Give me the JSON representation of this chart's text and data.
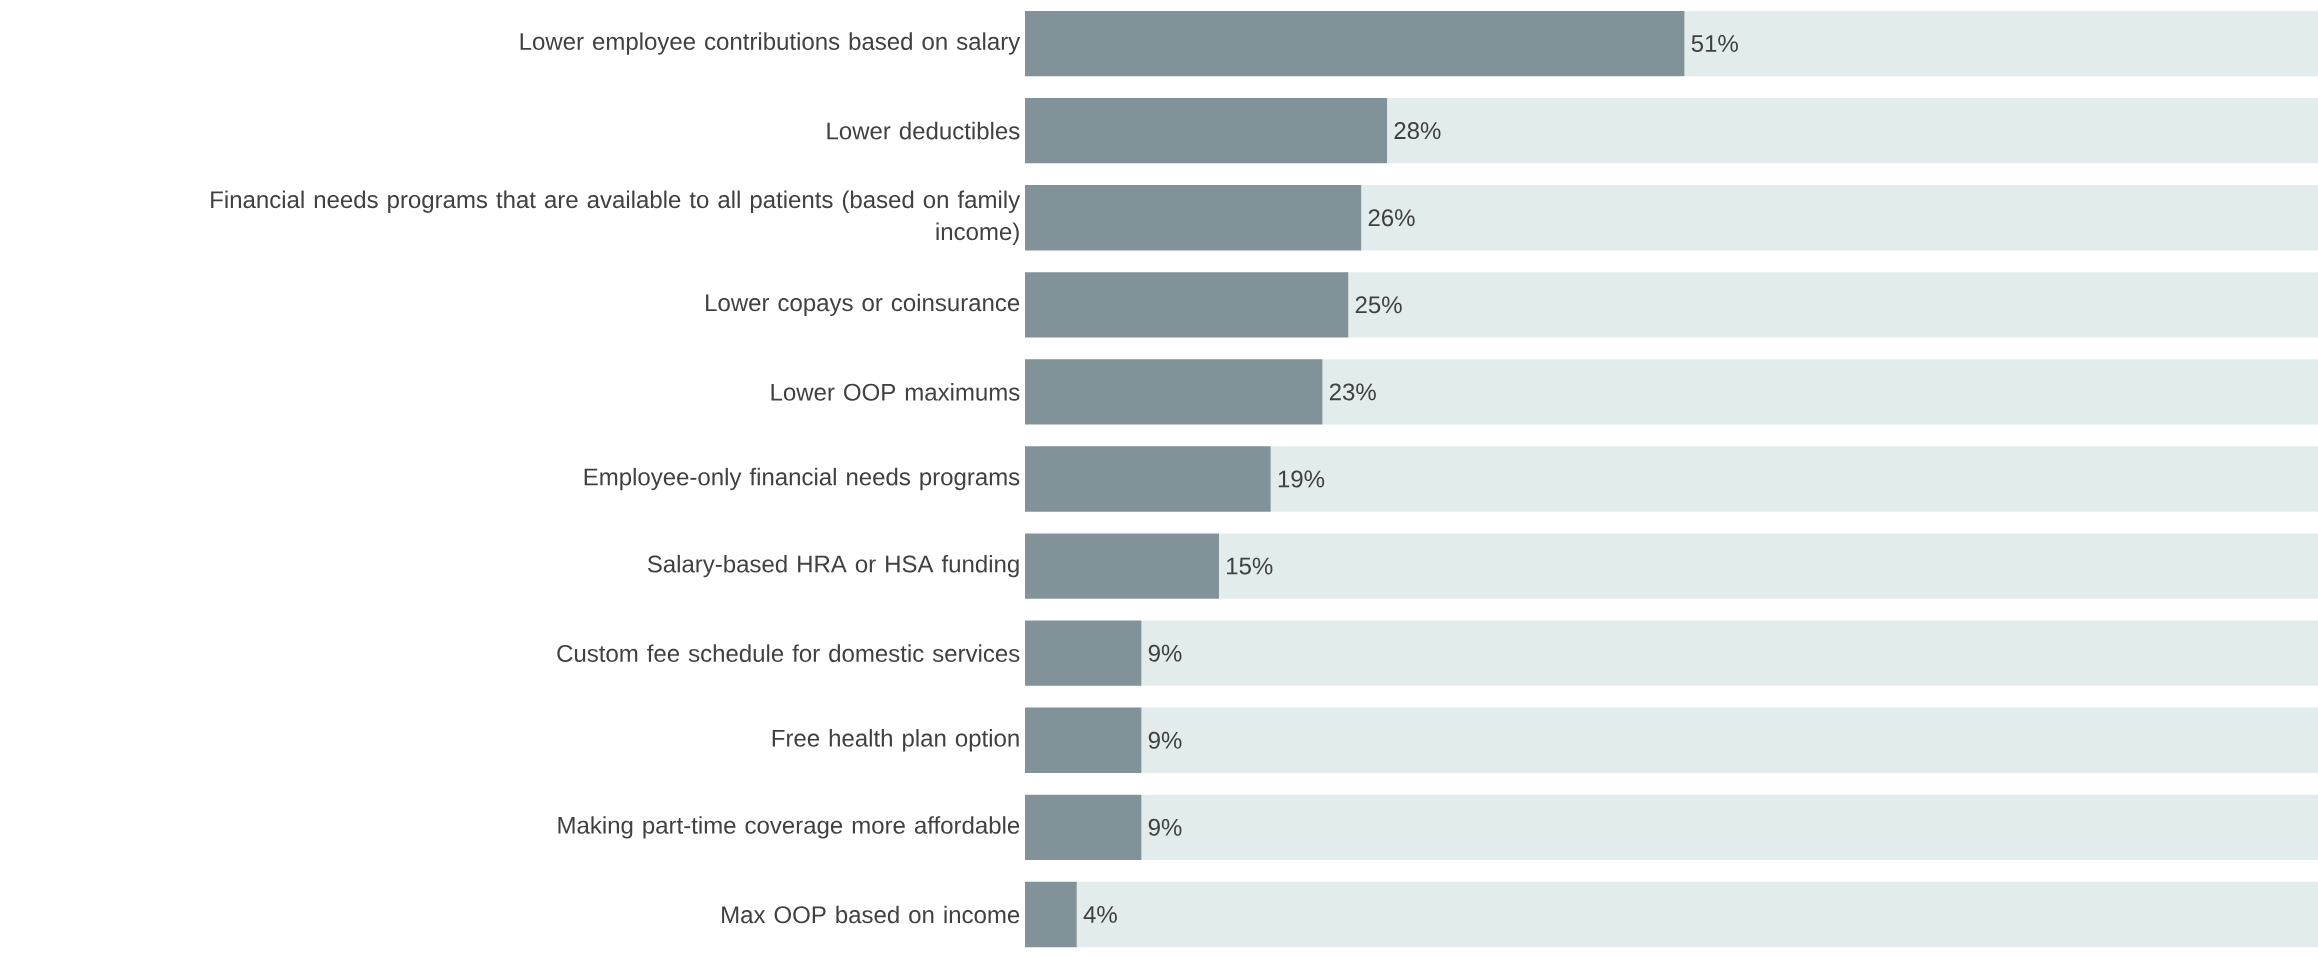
{
  "chart_data": {
    "type": "bar",
    "orientation": "horizontal",
    "stacked": true,
    "categories": [
      "Lower employee contributions based on salary",
      "Lower deductibles",
      "Financial needs programs that are available to all patients (based on family income)",
      "Lower copays or coinsurance",
      "Lower OOP maximums",
      "Employee-only financial needs programs",
      "Salary-based HRA or HSA funding",
      "Custom fee schedule for domestic services",
      "Free health plan option",
      "Making part-time coverage more affordable",
      "Max OOP based on income"
    ],
    "series": [
      {
        "color": "#819298",
        "values": [
          51,
          28,
          26,
          25,
          23,
          19,
          15,
          9,
          9,
          9,
          4
        ],
        "value_labels": [
          "51%",
          "28%",
          "26%",
          "25%",
          "23%",
          "19%",
          "15%",
          "9%",
          "9%",
          "9%",
          "4%"
        ]
      },
      {
        "color": "#e3eced",
        "values": [
          49,
          72,
          74,
          75,
          77,
          81,
          85,
          91,
          91,
          91,
          96
        ]
      }
    ],
    "grid": false
  }
}
